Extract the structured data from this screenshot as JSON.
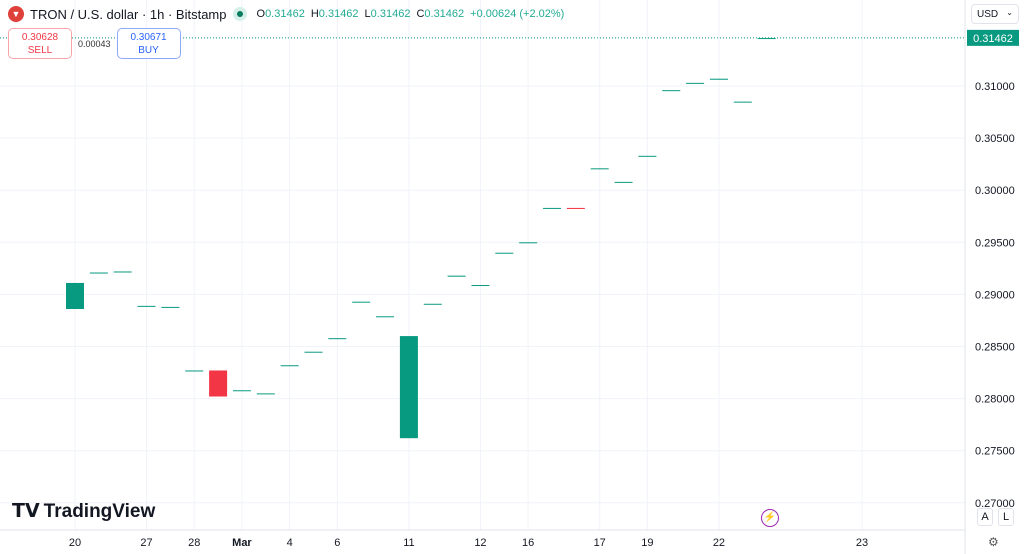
{
  "header": {
    "symbol": "TRON / U.S. dollar · 1h · Bitstamp",
    "o_label": "O",
    "o": "0.31462",
    "h_label": "H",
    "h": "0.31462",
    "l_label": "L",
    "l": "0.31462",
    "c_label": "C",
    "c": "0.31462",
    "change": "+0.00624 (+2.02%)"
  },
  "trade": {
    "sell_price": "0.30628",
    "sell_label": "SELL",
    "spread": "0.00043",
    "buy_price": "0.30671",
    "buy_label": "BUY"
  },
  "currency": "USD",
  "brand": "TradingView",
  "scale_buttons": {
    "auto": "A",
    "log": "L"
  },
  "colors": {
    "up": "#089981",
    "down": "#f23645",
    "grid": "#f0f3fa"
  },
  "chart_data": {
    "type": "candlestick",
    "ylim": [
      0.2695,
      0.3192
    ],
    "yticks": [
      "0.27000",
      "0.27500",
      "0.28000",
      "0.28500",
      "0.29000",
      "0.29500",
      "0.30000",
      "0.30500",
      "0.31000"
    ],
    "ytick_values": [
      0.27,
      0.275,
      0.28,
      0.285,
      0.29,
      0.295,
      0.3,
      0.305,
      0.31
    ],
    "last_price": 0.31462,
    "last_label": "0.31462",
    "xticks": [
      {
        "label": "20",
        "i": 0
      },
      {
        "label": "27",
        "i": 3
      },
      {
        "label": "28",
        "i": 5
      },
      {
        "label": "Mar",
        "i": 7
      },
      {
        "label": "4",
        "i": 9
      },
      {
        "label": "6",
        "i": 11
      },
      {
        "label": "11",
        "i": 14
      },
      {
        "label": "12",
        "i": 17
      },
      {
        "label": "16",
        "i": 19
      },
      {
        "label": "17",
        "i": 22
      },
      {
        "label": "19",
        "i": 24
      },
      {
        "label": "22",
        "i": 27
      },
      {
        "label": "23",
        "i": 33
      }
    ],
    "candles": [
      [
        0.2886,
        0.2911
      ],
      [
        0.2921,
        0.2921
      ],
      [
        0.2922,
        0.2922
      ],
      [
        0.2889,
        0.2889
      ],
      [
        0.2888,
        0.2888
      ],
      [
        0.2827,
        0.2827
      ],
      [
        0.2827,
        0.2802
      ],
      [
        0.2808,
        0.2808
      ],
      [
        0.2805,
        0.2805
      ],
      [
        0.2832,
        0.2832
      ],
      [
        0.2845,
        0.2845
      ],
      [
        0.2858,
        0.2858
      ],
      [
        0.2893,
        0.2893
      ],
      [
        0.2879,
        0.2879
      ],
      [
        0.2762,
        0.286
      ],
      [
        0.2891,
        0.2891
      ],
      [
        0.2917,
        0.2918
      ],
      [
        0.2909,
        0.2909
      ],
      [
        0.294,
        0.294
      ],
      [
        0.295,
        0.295
      ],
      [
        0.2983,
        0.2983
      ],
      [
        0.2983,
        0.2982
      ],
      [
        0.3021,
        0.3021
      ],
      [
        0.3008,
        0.3008
      ],
      [
        0.3033,
        0.3033
      ],
      [
        0.3096,
        0.3096
      ],
      [
        0.3103,
        0.3103
      ],
      [
        0.3106,
        0.3107
      ],
      [
        0.3085,
        0.3085
      ],
      [
        0.3146,
        0.3146
      ]
    ]
  }
}
